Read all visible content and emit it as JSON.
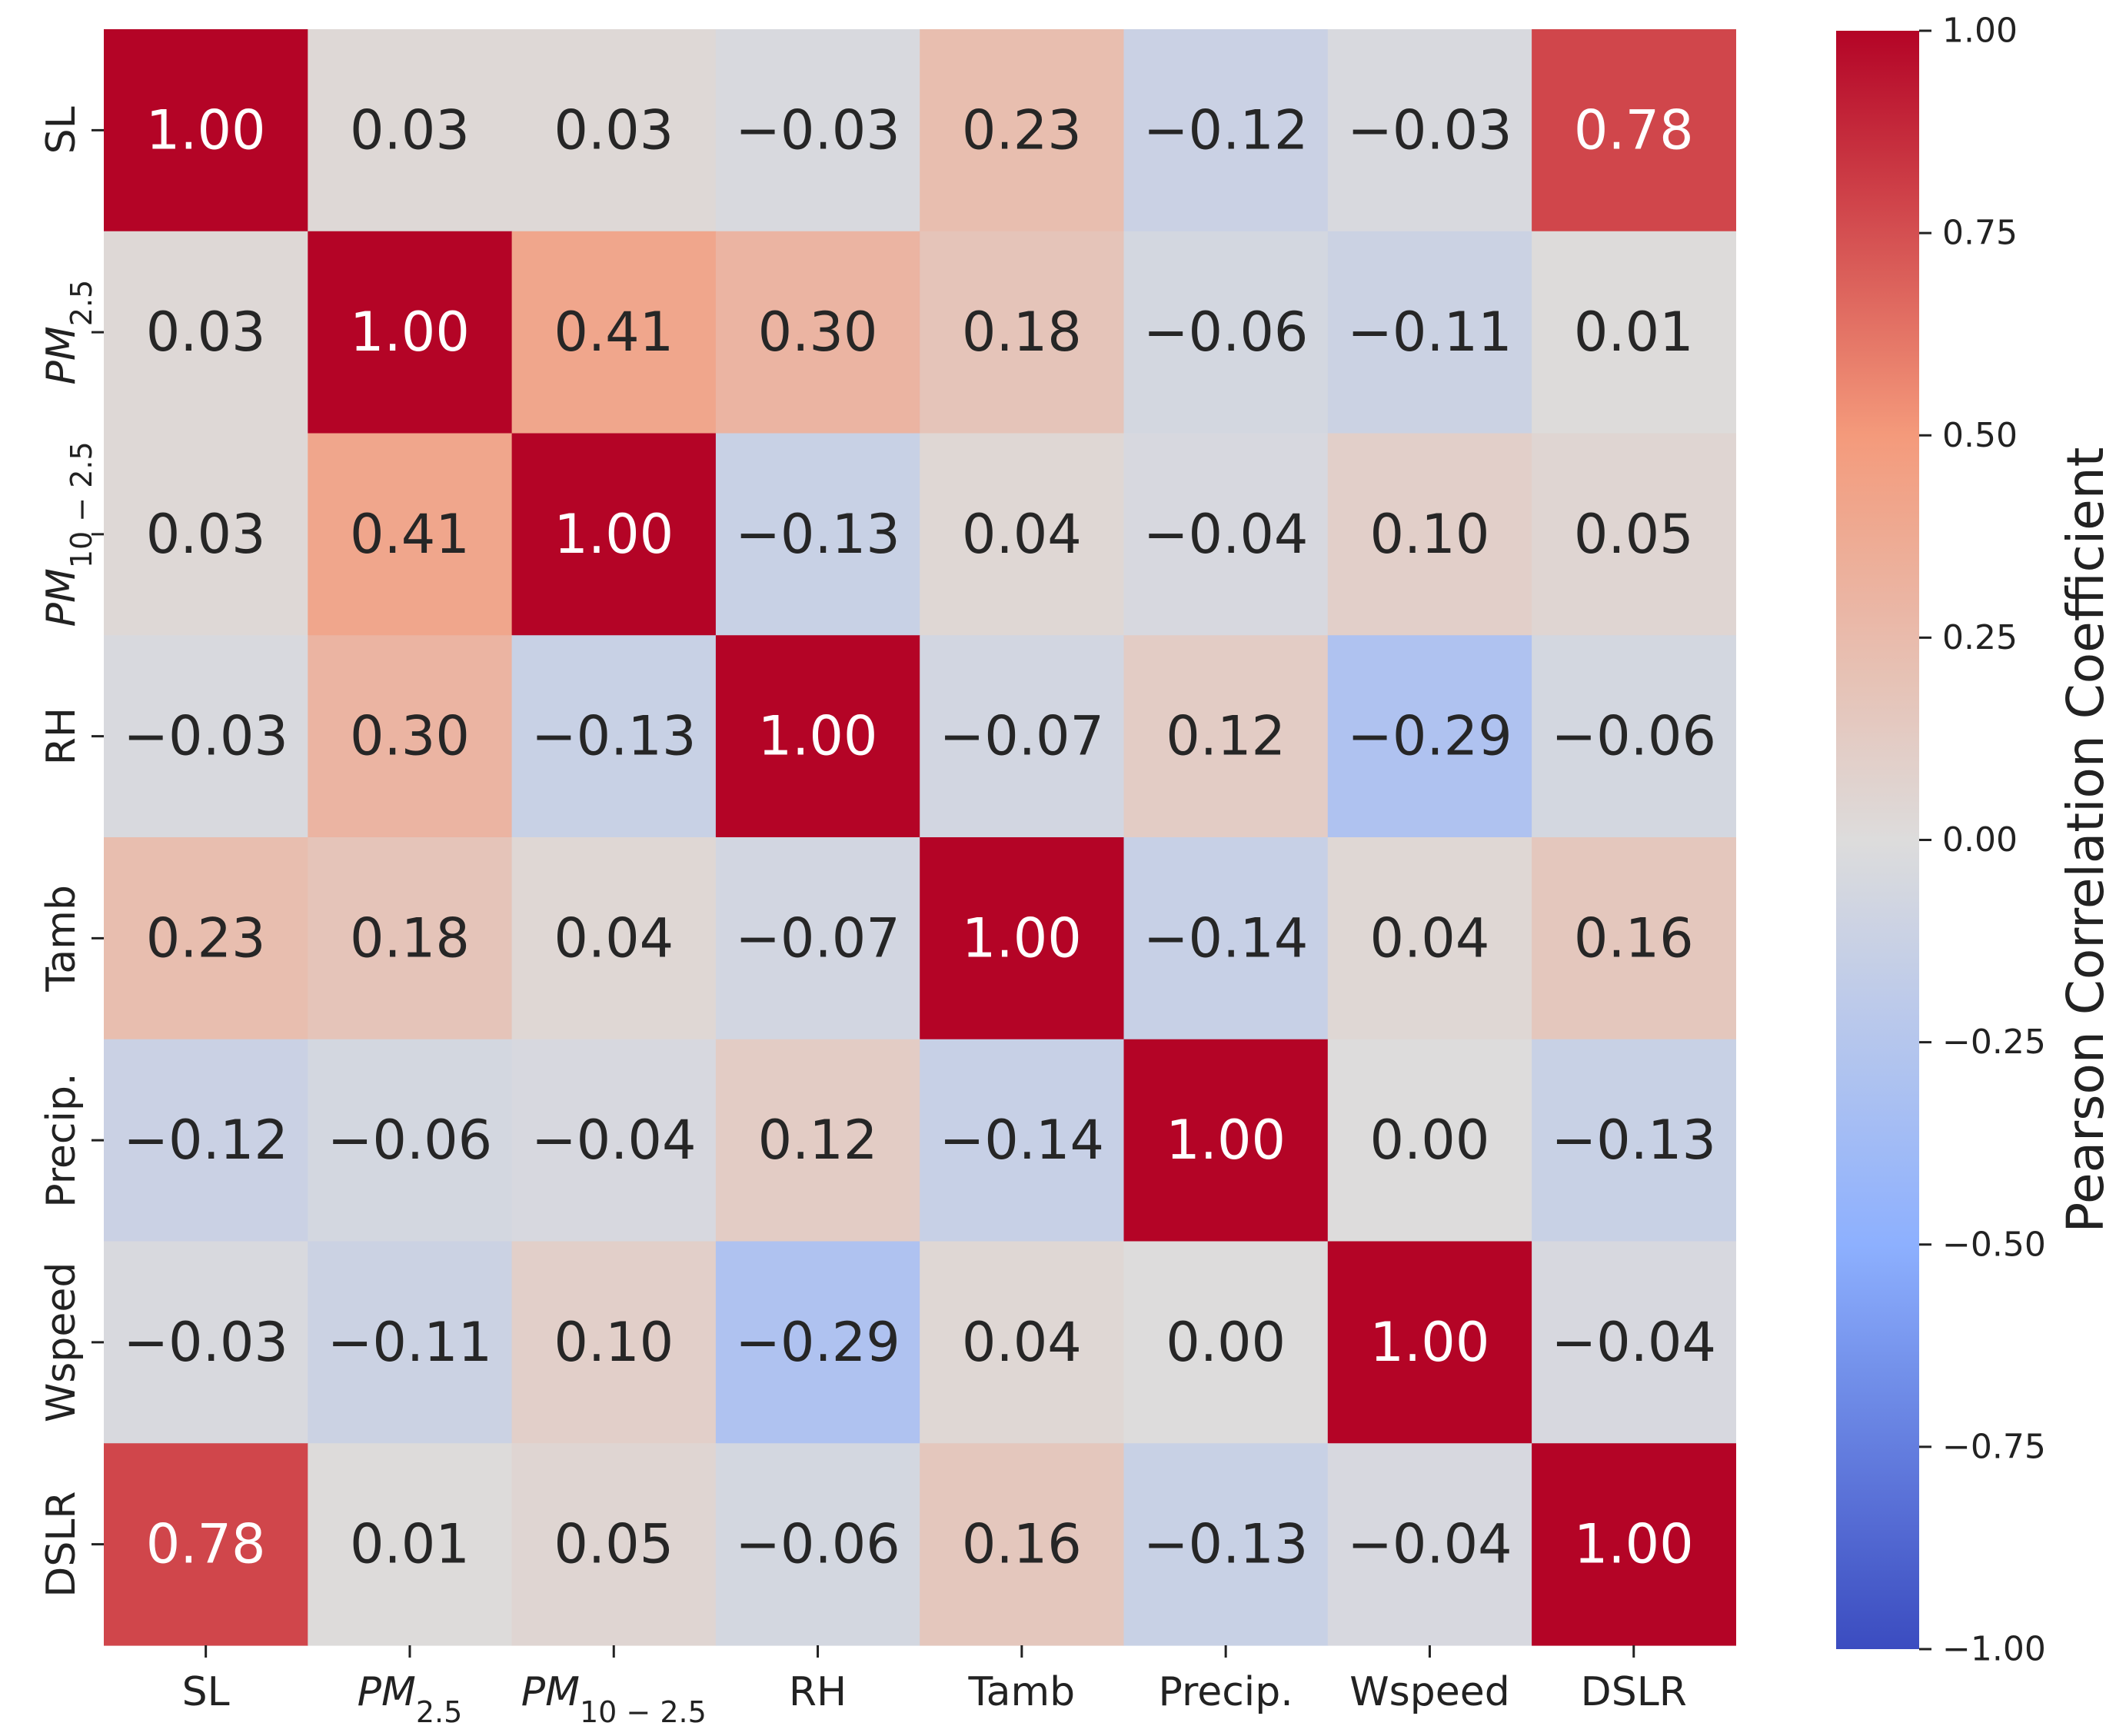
{
  "chart_data": {
    "type": "heatmap",
    "title": "",
    "variables": [
      {
        "key": "SL",
        "label": "SL",
        "sub": ""
      },
      {
        "key": "PM2.5",
        "label": "PM",
        "sub": "2.5",
        "italic": true
      },
      {
        "key": "PM10-2.5",
        "label": "PM",
        "sub": "10 − 2.5",
        "italic": true
      },
      {
        "key": "RH",
        "label": "RH",
        "sub": ""
      },
      {
        "key": "Tamb",
        "label": "Tamb",
        "sub": ""
      },
      {
        "key": "Precip.",
        "label": "Precip.",
        "sub": ""
      },
      {
        "key": "Wspeed",
        "label": "Wspeed",
        "sub": ""
      },
      {
        "key": "DSLR",
        "label": "DSLR",
        "sub": ""
      }
    ],
    "matrix": [
      [
        1.0,
        0.03,
        0.03,
        -0.03,
        0.23,
        -0.12,
        -0.03,
        0.78
      ],
      [
        0.03,
        1.0,
        0.41,
        0.3,
        0.18,
        -0.06,
        -0.11,
        0.01
      ],
      [
        0.03,
        0.41,
        1.0,
        -0.13,
        0.04,
        -0.04,
        0.1,
        0.05
      ],
      [
        -0.03,
        0.3,
        -0.13,
        1.0,
        -0.07,
        0.12,
        -0.29,
        -0.06
      ],
      [
        0.23,
        0.18,
        0.04,
        -0.07,
        1.0,
        -0.14,
        0.04,
        0.16
      ],
      [
        -0.12,
        -0.06,
        -0.04,
        0.12,
        -0.14,
        1.0,
        0.0,
        -0.13
      ],
      [
        -0.03,
        -0.11,
        0.1,
        -0.29,
        0.04,
        0.0,
        1.0,
        -0.04
      ],
      [
        0.78,
        0.01,
        0.05,
        -0.06,
        0.16,
        -0.13,
        -0.04,
        1.0
      ]
    ],
    "colorbar": {
      "label": "Pearson Correlation Coefficient",
      "range": [
        -1.0,
        1.0
      ],
      "ticks": [
        "1.00",
        "0.75",
        "0.50",
        "0.25",
        "0.00",
        "−0.25",
        "−0.50",
        "−0.75",
        "−1.00"
      ],
      "tick_values": [
        1.0,
        0.75,
        0.5,
        0.25,
        0.0,
        -0.25,
        -0.5,
        -0.75,
        -1.0
      ],
      "colormap": "coolwarm",
      "colors": {
        "neg_end": "#3b4cc0",
        "neg_mid": "#8db0fe",
        "center": "#dddcdc",
        "pos_mid": "#f49a7b",
        "pos_end": "#b40426"
      }
    },
    "annotation_format": "0.00"
  }
}
